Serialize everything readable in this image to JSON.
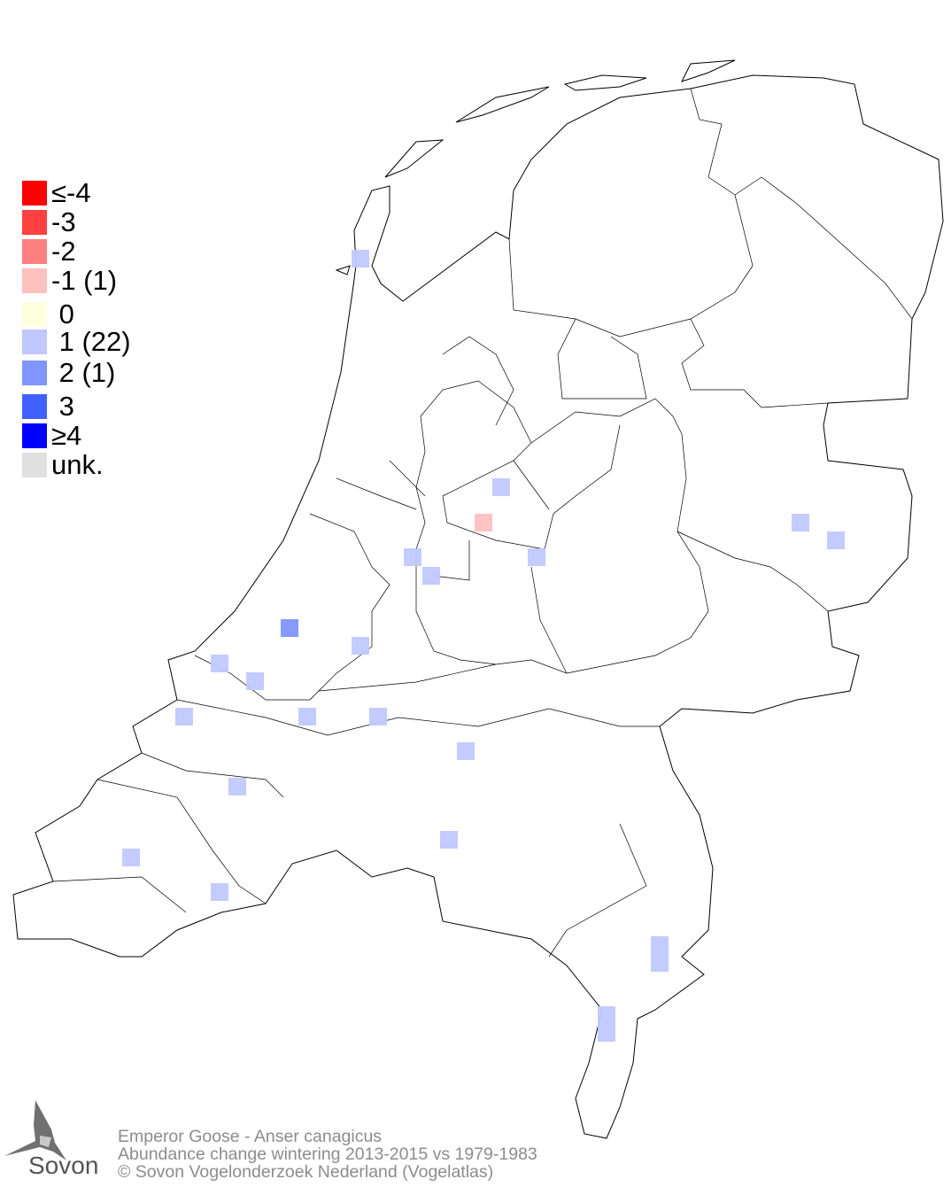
{
  "legend": {
    "items": [
      {
        "label": "≤-4",
        "color": "#ff0000"
      },
      {
        "label": "-3",
        "color": "#ff4040"
      },
      {
        "label": "-2",
        "color": "#ff8080"
      },
      {
        "label": "-1 (1)",
        "color": "#ffc0c0"
      },
      {
        "label": " 0",
        "color": "#ffffe0"
      },
      {
        "label": " 1 (22)",
        "color": "#c0c8ff"
      },
      {
        "label": " 2 (1)",
        "color": "#8095ff"
      },
      {
        "label": " 3",
        "color": "#4060ff"
      },
      {
        "label": "≥4",
        "color": "#0000ff"
      },
      {
        "label": "unk.",
        "color": "#e0e0e0"
      }
    ]
  },
  "footer": {
    "species": "Emperor Goose - Anser canagicus",
    "subtitle": "Abundance change wintering  2013-2015 vs 1979-1983",
    "copyright": "© Sovon Vogelonderzoek Nederland (Vogelatlas)"
  },
  "logo": {
    "text": "Sovon"
  }
}
